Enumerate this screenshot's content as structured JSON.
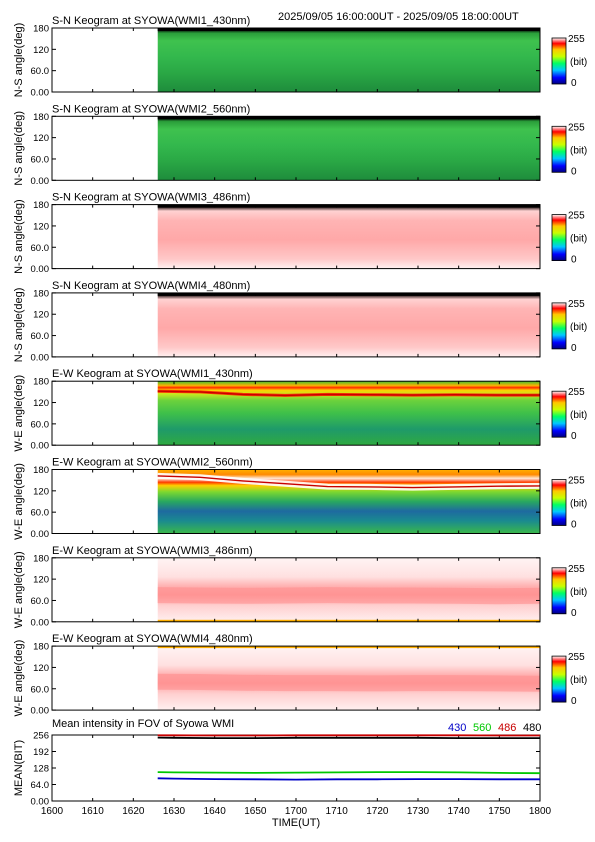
{
  "header": {
    "time_range": "2025/09/05 16:00:00UT - 2025/09/05 18:00:00UT"
  },
  "panel_titles": [
    "S-N Keogram at SYOWA(WMI1_430nm)",
    "S-N Keogram at SYOWA(WMI2_560nm)",
    "S-N Keogram at SYOWA(WMI3_486nm)",
    "S-N Keogram at SYOWA(WMI4_480nm)",
    "E-W Keogram at SYOWA(WMI1_430nm)",
    "E-W Keogram at SYOWA(WMI2_560nm)",
    "E-W Keogram at SYOWA(WMI3_486nm)",
    "E-W Keogram at SYOWA(WMI4_480nm)",
    "Mean intensity in FOV of Syowa WMI"
  ],
  "ylabels": {
    "ns": "N-S angle(deg)",
    "we": "W-E angle(deg)",
    "mean": "MEAN(BIT)"
  },
  "ytick_labels": {
    "angle": [
      "0.00",
      "60.0",
      "120",
      "180"
    ],
    "mean": [
      "0.00",
      "64.0",
      "128",
      "192",
      "256"
    ]
  },
  "colorbar": {
    "max": "255",
    "unit": "(bit)",
    "min": "0"
  },
  "xaxis": {
    "label": "TIME(UT)",
    "ticks": [
      "1600",
      "1610",
      "1620",
      "1630",
      "1640",
      "1650",
      "1700",
      "1710",
      "1720",
      "1730",
      "1740",
      "1750",
      "1800"
    ]
  },
  "legend": [
    {
      "label": "430",
      "color": "#0000c8"
    },
    {
      "label": "560",
      "color": "#00c800"
    },
    {
      "label": "486",
      "color": "#c80000"
    },
    {
      "label": "480",
      "color": "#000000"
    }
  ],
  "chart_data": {
    "type": "line",
    "title": "Mean intensity in FOV of Syowa WMI",
    "xlabel": "TIME(UT)",
    "ylabel": "MEAN(BIT)",
    "xlim": [
      "1600",
      "1800"
    ],
    "ylim": [
      0,
      256
    ],
    "data_start": "1626",
    "x": [
      "1626",
      "1630",
      "1640",
      "1650",
      "1700",
      "1710",
      "1720",
      "1730",
      "1740",
      "1750",
      "1800"
    ],
    "series": [
      {
        "name": "430",
        "color": "#0000c8",
        "values": [
          88,
          87,
          85,
          84,
          83,
          84,
          84,
          85,
          85,
          84,
          84
        ]
      },
      {
        "name": "560",
        "color": "#00c800",
        "values": [
          112,
          111,
          110,
          109,
          110,
          111,
          112,
          112,
          111,
          109,
          108
        ]
      },
      {
        "name": "486",
        "color": "#c80000",
        "values": [
          255,
          255,
          254,
          254,
          255,
          255,
          255,
          255,
          255,
          254,
          254
        ]
      },
      {
        "name": "480",
        "color": "#000000",
        "values": [
          246,
          245,
          244,
          244,
          245,
          245,
          245,
          245,
          244,
          244,
          244
        ]
      }
    ]
  },
  "keograms": [
    {
      "kind": "green",
      "top_band": true
    },
    {
      "kind": "green",
      "top_band": true
    },
    {
      "kind": "red",
      "top_band": true
    },
    {
      "kind": "red",
      "top_band": true
    },
    {
      "kind": "green_arc",
      "arc": [
        152,
        150,
        143,
        140,
        143,
        142,
        141,
        142,
        141,
        141
      ]
    },
    {
      "kind": "green_arc_strong",
      "arc": [
        162,
        158,
        148,
        140,
        132,
        131,
        129,
        131,
        133,
        134
      ]
    },
    {
      "kind": "red_band",
      "band": [
        75,
        74,
        73,
        74,
        75,
        74,
        74,
        73,
        72,
        73
      ]
    },
    {
      "kind": "red_band",
      "band": [
        80,
        79,
        77,
        76,
        76,
        75,
        76,
        76,
        75,
        74
      ]
    }
  ]
}
